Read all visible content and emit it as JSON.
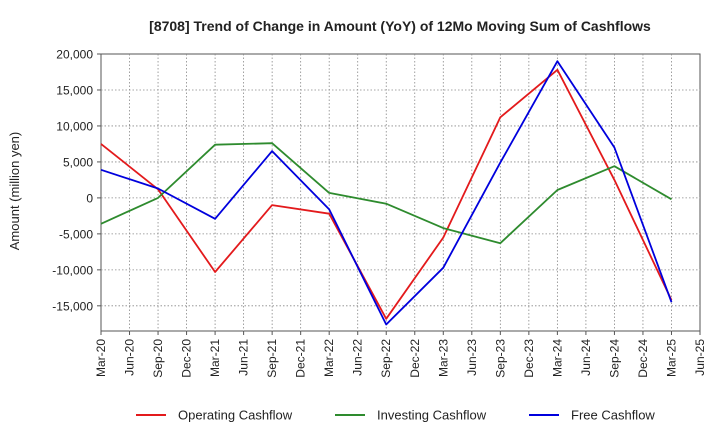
{
  "chart_data": {
    "type": "line",
    "title": "[8708]  Trend of Change in Amount (YoY) of 12Mo Moving Sum of Cashflows",
    "xlabel": "",
    "ylabel": "Amount (million yen)",
    "ylim": [
      -18500,
      20000
    ],
    "yticks": [
      20000,
      15000,
      10000,
      5000,
      0,
      -5000,
      -10000,
      -15000
    ],
    "ytick_labels": [
      "20,000",
      "15,000",
      "10,000",
      "5,000",
      "0",
      "-5,000",
      "-10,000",
      "-15,000"
    ],
    "categories": [
      "Mar-20",
      "Jun-20",
      "Sep-20",
      "Dec-20",
      "Mar-21",
      "Jun-21",
      "Sep-21",
      "Dec-21",
      "Mar-22",
      "Jun-22",
      "Sep-22",
      "Dec-22",
      "Mar-23",
      "Jun-23",
      "Sep-23",
      "Dec-23",
      "Mar-24",
      "Jun-24",
      "Sep-24",
      "Dec-24",
      "Mar-25",
      "Jun-25"
    ],
    "series": [
      {
        "name": "Operating Cashflow",
        "color": "#e31a1c",
        "values": [
          7500,
          null,
          1200,
          null,
          -10300,
          null,
          -1000,
          null,
          -2200,
          null,
          -16800,
          null,
          -5500,
          null,
          11200,
          null,
          17800,
          null,
          2500,
          null,
          -14200,
          null
        ]
      },
      {
        "name": "Investing Cashflow",
        "color": "#2e8b2e",
        "values": [
          -3600,
          null,
          0,
          null,
          7400,
          null,
          7600,
          null,
          700,
          null,
          -800,
          null,
          -4200,
          null,
          -6300,
          null,
          1100,
          null,
          4400,
          null,
          -200,
          null
        ]
      },
      {
        "name": "Free Cashflow",
        "color": "#0000dd",
        "values": [
          3900,
          null,
          1300,
          null,
          -2900,
          null,
          6500,
          null,
          -1600,
          null,
          -17600,
          null,
          -9700,
          null,
          4900,
          null,
          19000,
          null,
          7000,
          null,
          -14500,
          null
        ]
      }
    ],
    "legend_position": "bottom"
  }
}
